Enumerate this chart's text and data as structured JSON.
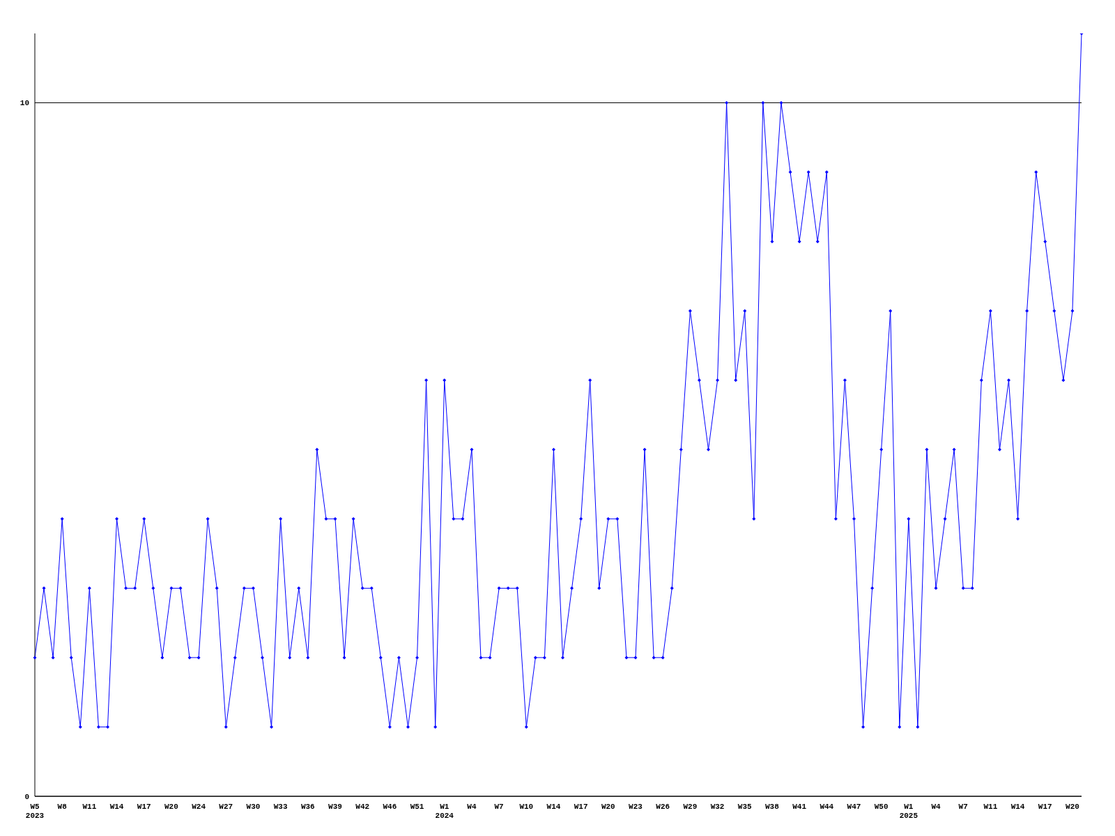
{
  "chart_data": {
    "type": "line",
    "categories": [
      "W5\n2023",
      null,
      null,
      "W8",
      null,
      null,
      "W11",
      null,
      null,
      "W14",
      null,
      null,
      "W17",
      null,
      null,
      "W20",
      null,
      null,
      "W24",
      null,
      null,
      "W27",
      null,
      null,
      "W30",
      null,
      null,
      "W33",
      null,
      null,
      "W36",
      null,
      null,
      "W39",
      null,
      null,
      "W42",
      null,
      null,
      "W46",
      null,
      null,
      "W51",
      null,
      null,
      "W1\n2024",
      null,
      null,
      "W4",
      null,
      null,
      "W7",
      null,
      null,
      "W10",
      null,
      null,
      "W14",
      null,
      null,
      "W17",
      null,
      null,
      "W20",
      null,
      null,
      "W23",
      null,
      null,
      "W26",
      null,
      null,
      "W29",
      null,
      null,
      "W32",
      null,
      null,
      "W35",
      null,
      null,
      "W38",
      null,
      null,
      "W41",
      null,
      null,
      "W44",
      null,
      null,
      "W47",
      null,
      null,
      "W50",
      null,
      null,
      "W1\n2025",
      null,
      null,
      "W4",
      null,
      null,
      "W7",
      null,
      null,
      "W11",
      null,
      null,
      "W14",
      null,
      null,
      "W17",
      null,
      null,
      "W20",
      null
    ],
    "series": [
      {
        "color": "#0000ff",
        "values": [
          2,
          3,
          2,
          4,
          2,
          1,
          3,
          1,
          1,
          4,
          3,
          3,
          4,
          3,
          2,
          3,
          3,
          2,
          2,
          4,
          3,
          1,
          2,
          3,
          3,
          2,
          1,
          4,
          2,
          3,
          2,
          5,
          4,
          4,
          2,
          4,
          3,
          3,
          2,
          1,
          2,
          1,
          2,
          6,
          1,
          6,
          4,
          4,
          5,
          2,
          2,
          3,
          3,
          3,
          1,
          2,
          2,
          5,
          2,
          3,
          4,
          6,
          3,
          4,
          4,
          2,
          2,
          5,
          2,
          2,
          3,
          5,
          7,
          6,
          5,
          6,
          10,
          6,
          7,
          4,
          10,
          8,
          10,
          9,
          8,
          9,
          8,
          9,
          4,
          6,
          4,
          1,
          3,
          5,
          7,
          1,
          4,
          1,
          5,
          3,
          4,
          5,
          3,
          3,
          6,
          7,
          5,
          6,
          4,
          7,
          9,
          8,
          7,
          6,
          7,
          11
        ]
      }
    ],
    "ylim": [
      0,
      11
    ],
    "yticks": [
      0,
      10
    ],
    "grid": "y",
    "marker": "diamond",
    "line_style": "solid"
  }
}
